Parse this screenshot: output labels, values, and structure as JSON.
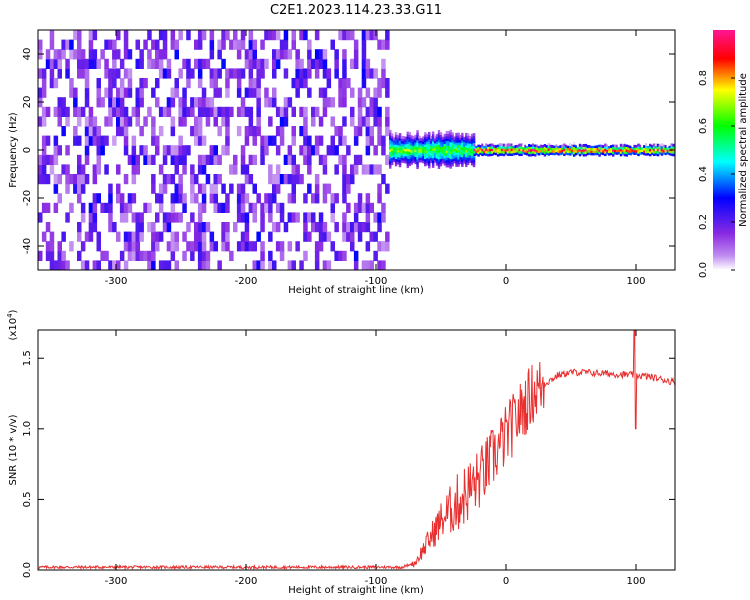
{
  "title": "C2E1.2023.114.23.33.G11",
  "chart_data": [
    {
      "type": "heatmap",
      "xlabel": "Height of straight line (km)",
      "ylabel": "Frequency (Hz)",
      "xlim": [
        -360,
        130
      ],
      "ylim": [
        -50,
        50
      ],
      "xticks": [
        -300,
        -200,
        -100,
        0,
        100
      ],
      "yticks": [
        -40,
        -20,
        0,
        20,
        40
      ],
      "noise_region_x": [
        -360,
        -90
      ],
      "noise_amplitude": [
        0.05,
        0.25
      ],
      "signal_band": [
        {
          "x": [
            -90,
            -25
          ],
          "center_hz": 0,
          "halfwidth_hz": 6,
          "peak_amplitude": 0.6
        },
        {
          "x": [
            -25,
            130
          ],
          "center_hz": 0,
          "halfwidth_hz": 2,
          "peak_amplitude": 0.95
        }
      ],
      "colorbar": {
        "label": "Normalized spectral amplitude",
        "range": [
          0.0,
          1.0
        ],
        "ticks": [
          "0.0",
          "0.2",
          "0.4",
          "0.6",
          "0.8"
        ],
        "colors": [
          "#ffffff",
          "#8a2be2",
          "#0000ff",
          "#00ffff",
          "#00ff00",
          "#ffff00",
          "#ff0000",
          "#ff1493"
        ]
      }
    },
    {
      "type": "line",
      "xlabel": "Height of straight line (km)",
      "ylabel": "SNR (10 * v/v)",
      "y_multiplier_label": "(x10",
      "y_multiplier_exp": "4",
      "xlim": [
        -360,
        130
      ],
      "ylim": [
        0,
        1.7
      ],
      "xticks": [
        -300,
        -200,
        -100,
        0,
        100
      ],
      "yticks": [
        "0.0",
        "0.5",
        "1.0",
        "1.5"
      ],
      "color": "#e83030",
      "series": [
        {
          "x": [
            -360,
            -300,
            -200,
            -100,
            -80,
            -70,
            -60,
            -50,
            -40,
            -30,
            -20,
            -10,
            0,
            10,
            20,
            30,
            40,
            50,
            60,
            80,
            100,
            110,
            120,
            130
          ],
          "y": [
            0.02,
            0.02,
            0.02,
            0.02,
            0.02,
            0.05,
            0.2,
            0.35,
            0.45,
            0.55,
            0.65,
            0.8,
            0.95,
            1.1,
            1.25,
            1.32,
            1.38,
            1.4,
            1.4,
            1.39,
            1.38,
            1.37,
            1.35,
            1.33
          ]
        }
      ]
    }
  ]
}
